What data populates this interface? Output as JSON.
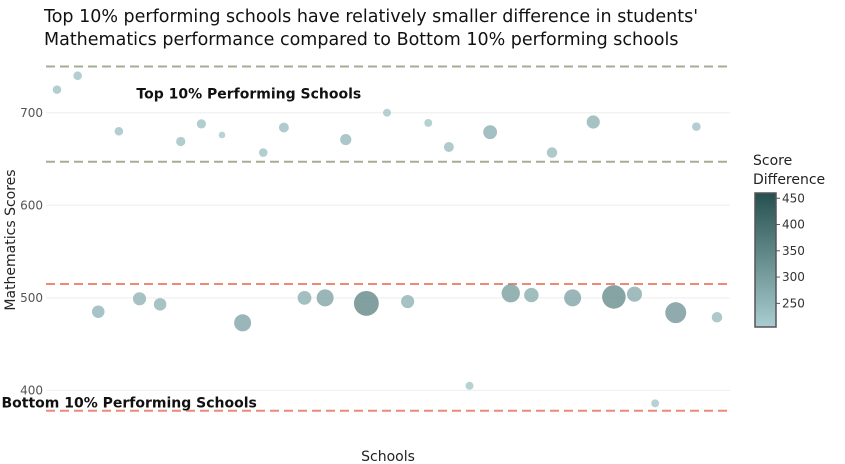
{
  "chart_data": {
    "type": "scatter",
    "title_lines": [
      "Top 10% performing schools have relatively smaller difference in students'",
      "Mathematics performance compared to Bottom 10% performing schools"
    ],
    "xlabel": "Schools",
    "ylabel": "Mathematics Scores",
    "ylim": [
      368,
      757
    ],
    "yticks": [
      400,
      500,
      600,
      700
    ],
    "grid": true,
    "annotations": [
      {
        "text": "Top 10% Performing Schools",
        "x": 9.3,
        "y": 750
      },
      {
        "text": "Bottom 10% Performing Schools",
        "x": 3.5,
        "y": 416
      }
    ],
    "reference_lines": [
      {
        "y": 750,
        "color": "#a5ad94"
      },
      {
        "y": 647,
        "color": "#a5ad94"
      },
      {
        "y": 515,
        "color": "#ec8a76"
      },
      {
        "y": 378,
        "color": "#ec8a76"
      }
    ],
    "colorbar": {
      "title_lines": [
        "Score",
        "Difference"
      ],
      "min": 205,
      "max": 460,
      "ticks": [
        250,
        300,
        350,
        400,
        450
      ],
      "colors": [
        "#a9cdd0",
        "#264f4f"
      ]
    },
    "points": [
      {
        "x": 0,
        "y": 725,
        "diff": 235
      },
      {
        "x": 1,
        "y": 740,
        "diff": 235
      },
      {
        "x": 2,
        "y": 485,
        "diff": 265
      },
      {
        "x": 3,
        "y": 680,
        "diff": 235
      },
      {
        "x": 4,
        "y": 499,
        "diff": 270
      },
      {
        "x": 5,
        "y": 493,
        "diff": 265
      },
      {
        "x": 6,
        "y": 669,
        "diff": 240
      },
      {
        "x": 7,
        "y": 688,
        "diff": 240
      },
      {
        "x": 8,
        "y": 676,
        "diff": 220
      },
      {
        "x": 9,
        "y": 473,
        "diff": 300
      },
      {
        "x": 10,
        "y": 657,
        "diff": 235
      },
      {
        "x": 11,
        "y": 684,
        "diff": 245
      },
      {
        "x": 12,
        "y": 500,
        "diff": 275
      },
      {
        "x": 13,
        "y": 500,
        "diff": 300
      },
      {
        "x": 14,
        "y": 671,
        "diff": 255
      },
      {
        "x": 15,
        "y": 494,
        "diff": 360
      },
      {
        "x": 16,
        "y": 700,
        "diff": 230
      },
      {
        "x": 17,
        "y": 496,
        "diff": 270
      },
      {
        "x": 18,
        "y": 689,
        "diff": 230
      },
      {
        "x": 19,
        "y": 663,
        "diff": 245
      },
      {
        "x": 20,
        "y": 405,
        "diff": 230
      },
      {
        "x": 21,
        "y": 679,
        "diff": 275
      },
      {
        "x": 22,
        "y": 505,
        "diff": 310
      },
      {
        "x": 23,
        "y": 503,
        "diff": 280
      },
      {
        "x": 24,
        "y": 657,
        "diff": 250
      },
      {
        "x": 25,
        "y": 500,
        "diff": 300
      },
      {
        "x": 26,
        "y": 690,
        "diff": 270
      },
      {
        "x": 27,
        "y": 501,
        "diff": 350
      },
      {
        "x": 28,
        "y": 504,
        "diff": 285
      },
      {
        "x": 29,
        "y": 386,
        "diff": 230
      },
      {
        "x": 30,
        "y": 484,
        "diff": 330
      },
      {
        "x": 31,
        "y": 685,
        "diff": 235
      },
      {
        "x": 32,
        "y": 479,
        "diff": 250
      }
    ]
  }
}
